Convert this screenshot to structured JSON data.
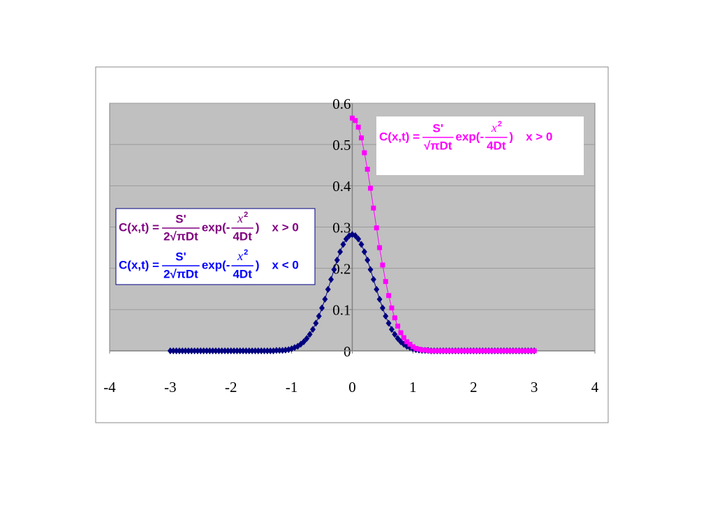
{
  "chart_data": {
    "type": "scatter-line",
    "xlim": [
      -4,
      4
    ],
    "xticks": [
      -4,
      -3,
      -2,
      -1,
      0,
      1,
      2,
      3,
      4
    ],
    "ylim": [
      0,
      0.6
    ],
    "yticks": [
      0,
      0.1,
      0.2,
      0.3,
      0.4,
      0.5,
      0.6
    ],
    "grid": true,
    "series": [
      {
        "color": "#000080",
        "marker": "diamond",
        "x": [
          -3,
          -2.95,
          -2.9,
          -2.85,
          -2.8,
          -2.75,
          -2.7,
          -2.65,
          -2.6,
          -2.55,
          -2.5,
          -2.45,
          -2.4,
          -2.35,
          -2.3,
          -2.25,
          -2.2,
          -2.15,
          -2.1,
          -2.05,
          -2,
          -1.95,
          -1.9,
          -1.85,
          -1.8,
          -1.75,
          -1.7,
          -1.65,
          -1.6,
          -1.55,
          -1.5,
          -1.45,
          -1.4,
          -1.35,
          -1.3,
          -1.25,
          -1.2,
          -1.15,
          -1.1,
          -1.05,
          -1,
          -0.95,
          -0.9,
          -0.85,
          -0.8,
          -0.75,
          -0.7,
          -0.65,
          -0.6,
          -0.55,
          -0.5,
          -0.45,
          -0.4,
          -0.35,
          -0.3,
          -0.25,
          -0.2,
          -0.15,
          -0.1,
          -0.05,
          0,
          0.05,
          0.1,
          0.15,
          0.2,
          0.25,
          0.3,
          0.35,
          0.4,
          0.45,
          0.5,
          0.55,
          0.6,
          0.65,
          0.7,
          0.75,
          0.8,
          0.85,
          0.9,
          0.95,
          1,
          1.05,
          1.1,
          1.15,
          1.2,
          1.25,
          1.3,
          1.35,
          1.4,
          1.45,
          1.5,
          1.55,
          1.6,
          1.65,
          1.7,
          1.75,
          1.8,
          1.85,
          1.9,
          1.95,
          2,
          2.05,
          2.1,
          2.15,
          2.2,
          2.25,
          2.3,
          2.35,
          2.4,
          2.45,
          2.5,
          2.55,
          2.6,
          2.65,
          2.7,
          2.75,
          2.8,
          2.85,
          2.9,
          2.95,
          3
        ],
        "values": [
          0,
          0,
          0,
          0,
          0,
          0,
          0,
          0,
          0,
          0,
          0,
          0,
          0,
          0,
          0,
          0,
          0,
          0,
          0,
          0,
          0,
          0,
          0,
          0,
          0,
          0,
          0,
          0,
          0,
          0,
          0,
          0,
          0,
          0,
          0,
          0.001,
          0.001,
          0.001,
          0.002,
          0.003,
          0.005,
          0.008,
          0.011,
          0.016,
          0.022,
          0.03,
          0.04,
          0.052,
          0.067,
          0.084,
          0.104,
          0.125,
          0.149,
          0.173,
          0.197,
          0.22,
          0.24,
          0.258,
          0.271,
          0.279,
          0.282,
          0.279,
          0.271,
          0.258,
          0.24,
          0.22,
          0.197,
          0.173,
          0.149,
          0.125,
          0.104,
          0.084,
          0.067,
          0.052,
          0.04,
          0.03,
          0.022,
          0.016,
          0.011,
          0.008,
          0.005,
          0.003,
          0.002,
          0.001,
          0.001,
          0.001,
          0,
          0,
          0,
          0,
          0,
          0,
          0,
          0,
          0,
          0,
          0,
          0,
          0,
          0,
          0,
          0,
          0,
          0,
          0,
          0,
          0,
          0,
          0,
          0,
          0,
          0,
          0,
          0,
          0,
          0,
          0,
          0,
          0,
          0,
          0
        ]
      },
      {
        "color": "#ff00ff",
        "marker": "square",
        "x": [
          0,
          0.05,
          0.1,
          0.15,
          0.2,
          0.25,
          0.3,
          0.35,
          0.4,
          0.45,
          0.5,
          0.55,
          0.6,
          0.65,
          0.7,
          0.75,
          0.8,
          0.85,
          0.9,
          0.95,
          1,
          1.05,
          1.1,
          1.15,
          1.2,
          1.25,
          1.3,
          1.35,
          1.4,
          1.45,
          1.5,
          1.55,
          1.6,
          1.65,
          1.7,
          1.75,
          1.8,
          1.85,
          1.9,
          1.95,
          2,
          2.05,
          2.1,
          2.15,
          2.2,
          2.25,
          2.3,
          2.35,
          2.4,
          2.45,
          2.5,
          2.55,
          2.6,
          2.65,
          2.7,
          2.75,
          2.8,
          2.85,
          2.9,
          2.95,
          3
        ],
        "values": [
          0.564,
          0.558,
          0.542,
          0.516,
          0.48,
          0.44,
          0.394,
          0.346,
          0.298,
          0.25,
          0.208,
          0.168,
          0.134,
          0.104,
          0.08,
          0.06,
          0.044,
          0.032,
          0.022,
          0.016,
          0.01,
          0.006,
          0.004,
          0.002,
          0.002,
          0.001,
          0,
          0,
          0,
          0,
          0,
          0,
          0,
          0,
          0,
          0,
          0,
          0,
          0,
          0,
          0,
          0,
          0,
          0,
          0,
          0,
          0,
          0,
          0,
          0,
          0,
          0,
          0,
          0,
          0,
          0,
          0,
          0,
          0,
          0,
          0
        ]
      }
    ],
    "annotations": [
      {
        "formulas": [
          {
            "color": "#ff00ff",
            "lhs": "C(x,t) =",
            "num": "S'",
            "den": "√πDt",
            "exp": "exp(-",
            "exp_num": "x",
            "exp_sup": "2",
            "exp_den": "4Dt",
            "close": ")",
            "cond": "x > 0"
          }
        ]
      },
      {
        "formulas": [
          {
            "color": "#800080",
            "lhs": "C(x,t) =",
            "num": "S'",
            "den": "2√πDt",
            "exp": "exp(-",
            "exp_num": "x",
            "exp_sup": "2",
            "exp_den": "4Dt",
            "close": ")",
            "cond": "x > 0"
          },
          {
            "color": "#0000ff",
            "lhs": "C(x,t) =",
            "num": "S'",
            "den": "2√πDt",
            "exp": "exp(-",
            "exp_num": "x",
            "exp_sup": "2",
            "exp_den": "4Dt",
            "close": ")",
            "cond": "x < 0"
          }
        ]
      }
    ]
  }
}
